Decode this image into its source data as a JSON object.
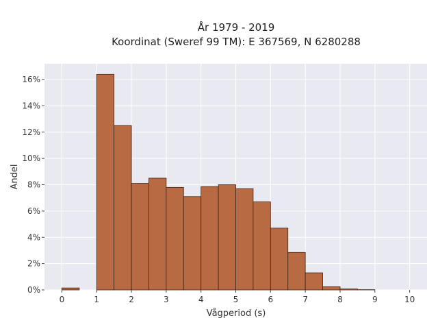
{
  "chart_data": {
    "type": "bar",
    "title": "År 1979 - 2019",
    "subtitle": "Koordinat (Sweref 99 TM): E 367569, N 6280288",
    "xlabel": "Vågperiod (s)",
    "ylabel": "Andel",
    "xlim": [
      -0.5,
      10.5
    ],
    "ylim": [
      0,
      17.2
    ],
    "x_ticks": [
      0,
      1,
      2,
      3,
      4,
      5,
      6,
      7,
      8,
      9,
      10
    ],
    "y_ticks": [
      0,
      2,
      4,
      6,
      8,
      10,
      12,
      14,
      16
    ],
    "y_tick_suffix": "%",
    "bin_width": 0.5,
    "bins": [
      {
        "start": 0.0,
        "value": 0.15
      },
      {
        "start": 0.5,
        "value": 0.0
      },
      {
        "start": 1.0,
        "value": 16.4
      },
      {
        "start": 1.5,
        "value": 12.5
      },
      {
        "start": 2.0,
        "value": 8.1
      },
      {
        "start": 2.5,
        "value": 8.5
      },
      {
        "start": 3.0,
        "value": 7.8
      },
      {
        "start": 3.5,
        "value": 7.1
      },
      {
        "start": 4.0,
        "value": 7.85
      },
      {
        "start": 4.5,
        "value": 8.0
      },
      {
        "start": 5.0,
        "value": 7.7
      },
      {
        "start": 5.5,
        "value": 6.7
      },
      {
        "start": 6.0,
        "value": 4.7
      },
      {
        "start": 6.5,
        "value": 2.85
      },
      {
        "start": 7.0,
        "value": 1.3
      },
      {
        "start": 7.5,
        "value": 0.25
      },
      {
        "start": 8.0,
        "value": 0.08
      },
      {
        "start": 8.5,
        "value": 0.02
      }
    ],
    "grid": true,
    "colors": {
      "bar_fill": "#b86a43",
      "bar_stroke": "#3d2314",
      "plot_background": "#e9e9f1",
      "grid": "#ffffff"
    }
  }
}
